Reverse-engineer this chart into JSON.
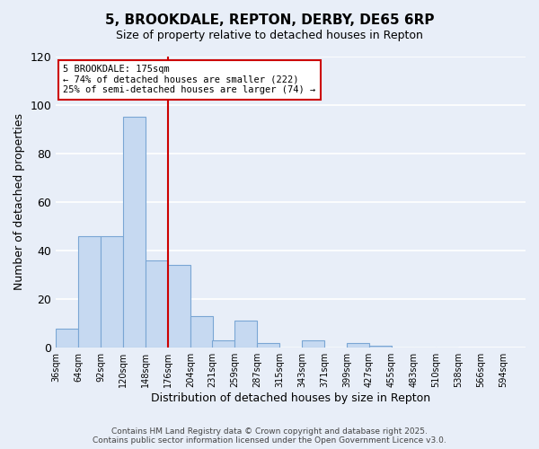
{
  "title": "5, BROOKDALE, REPTON, DERBY, DE65 6RP",
  "subtitle": "Size of property relative to detached houses in Repton",
  "xlabel": "Distribution of detached houses by size in Repton",
  "ylabel": "Number of detached properties",
  "bar_values": [
    8,
    46,
    46,
    95,
    36,
    34,
    13,
    3,
    11,
    2,
    0,
    3,
    0,
    2,
    1,
    0,
    0,
    0
  ],
  "bin_starts": [
    36,
    64,
    92,
    120,
    148,
    176,
    204,
    231,
    259,
    287,
    315,
    343,
    371,
    399,
    427,
    455,
    483,
    510
  ],
  "bin_width": 28,
  "tick_positions": [
    36,
    64,
    92,
    120,
    148,
    176,
    204,
    231,
    259,
    287,
    315,
    343,
    371,
    399,
    427,
    455,
    483,
    510,
    538,
    566,
    594
  ],
  "tick_labels": [
    "36sqm",
    "64sqm",
    "92sqm",
    "120sqm",
    "148sqm",
    "176sqm",
    "204sqm",
    "231sqm",
    "259sqm",
    "287sqm",
    "315sqm",
    "343sqm",
    "371sqm",
    "399sqm",
    "427sqm",
    "455sqm",
    "483sqm",
    "510sqm",
    "538sqm",
    "566sqm",
    "594sqm"
  ],
  "bar_color": "#c6d9f1",
  "bar_edge_color": "#7aa6d4",
  "vline_x": 176,
  "vline_color": "#cc0000",
  "ylim": [
    0,
    120
  ],
  "yticks": [
    0,
    20,
    40,
    60,
    80,
    100,
    120
  ],
  "annotation_title": "5 BROOKDALE: 175sqm",
  "annotation_line1": "← 74% of detached houses are smaller (222)",
  "annotation_line2": "25% of semi-detached houses are larger (74) →",
  "annotation_box_color": "#ffffff",
  "annotation_box_edge": "#cc0000",
  "background_color": "#e8eef8",
  "grid_color": "#ffffff",
  "footer_line1": "Contains HM Land Registry data © Crown copyright and database right 2025.",
  "footer_line2": "Contains public sector information licensed under the Open Government Licence v3.0."
}
